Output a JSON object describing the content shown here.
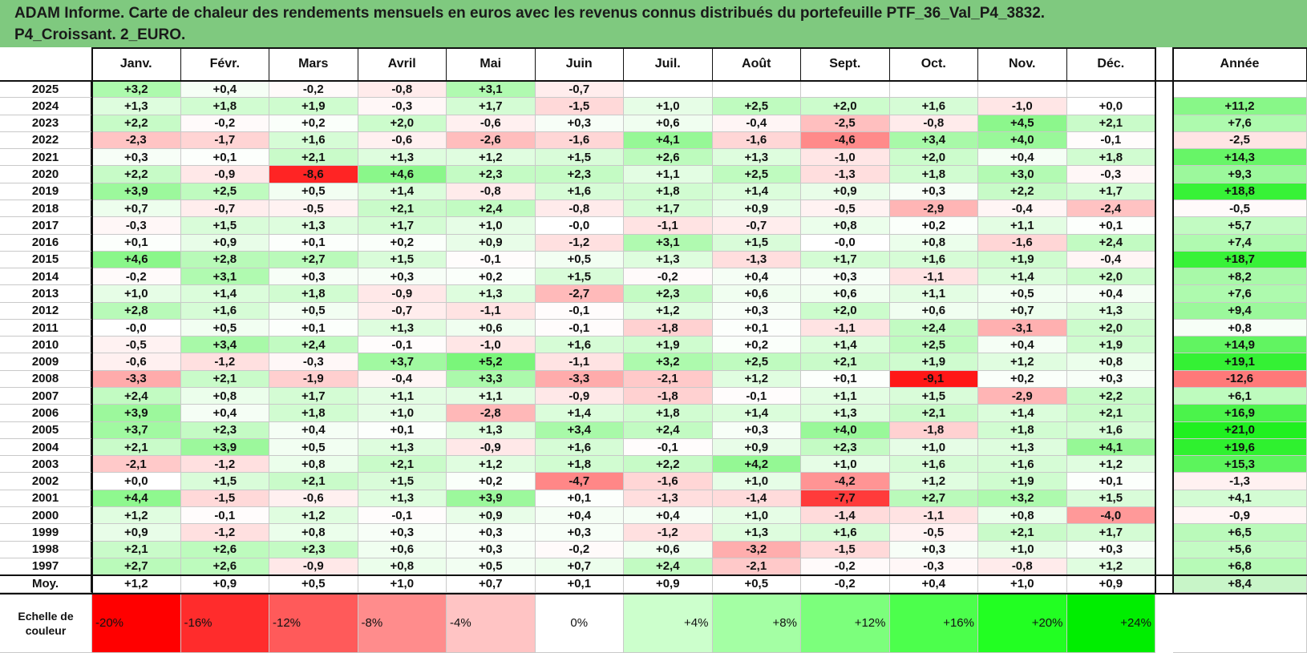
{
  "title": {
    "line1": "ADAM Informe. Carte de chaleur des rendements mensuels en euros avec les revenus connus distribués du portefeuille PTF_36_Val_P4_3832.",
    "line2": "P4_Croissant. 2_EURO."
  },
  "chart_data": {
    "type": "heatmap",
    "columns": [
      "Janv.",
      "Févr.",
      "Mars",
      "Avril",
      "Mai",
      "Juin",
      "Juil.",
      "Août",
      "Sept.",
      "Oct.",
      "Nov.",
      "Déc."
    ],
    "year_column_label": "Année",
    "rows": [
      {
        "year": "2025",
        "months": [
          "+3,2",
          "+0,4",
          "-0,2",
          "-0,8",
          "+3,1",
          "-0,7",
          "",
          "",
          "",
          "",
          "",
          ""
        ],
        "annual": ""
      },
      {
        "year": "2024",
        "months": [
          "+1,3",
          "+1,8",
          "+1,9",
          "-0,3",
          "+1,7",
          "-1,5",
          "+1,0",
          "+2,5",
          "+2,0",
          "+1,6",
          "-1,0",
          "+0,0"
        ],
        "annual": "+11,2"
      },
      {
        "year": "2023",
        "months": [
          "+2,2",
          "-0,2",
          "+0,2",
          "+2,0",
          "-0,6",
          "+0,3",
          "+0,6",
          "-0,4",
          "-2,5",
          "-0,8",
          "+4,5",
          "+2,1"
        ],
        "annual": "+7,6"
      },
      {
        "year": "2022",
        "months": [
          "-2,3",
          "-1,7",
          "+1,6",
          "-0,6",
          "-2,6",
          "-1,6",
          "+4,1",
          "-1,6",
          "-4,6",
          "+3,4",
          "+4,0",
          "-0,1"
        ],
        "annual": "-2,5"
      },
      {
        "year": "2021",
        "months": [
          "+0,3",
          "+0,1",
          "+2,1",
          "+1,3",
          "+1,2",
          "+1,5",
          "+2,6",
          "+1,3",
          "-1,0",
          "+2,0",
          "+0,4",
          "+1,8"
        ],
        "annual": "+14,3"
      },
      {
        "year": "2020",
        "months": [
          "+2,2",
          "-0,9",
          "-8,6",
          "+4,6",
          "+2,3",
          "+2,3",
          "+1,1",
          "+2,5",
          "-1,3",
          "+1,8",
          "+3,0",
          "-0,3"
        ],
        "annual": "+9,3"
      },
      {
        "year": "2019",
        "months": [
          "+3,9",
          "+2,5",
          "+0,5",
          "+1,4",
          "-0,8",
          "+1,6",
          "+1,8",
          "+1,4",
          "+0,9",
          "+0,3",
          "+2,2",
          "+1,7"
        ],
        "annual": "+18,8"
      },
      {
        "year": "2018",
        "months": [
          "+0,7",
          "-0,7",
          "-0,5",
          "+2,1",
          "+2,4",
          "-0,8",
          "+1,7",
          "+0,9",
          "-0,5",
          "-2,9",
          "-0,4",
          "-2,4"
        ],
        "annual": "-0,5"
      },
      {
        "year": "2017",
        "months": [
          "-0,3",
          "+1,5",
          "+1,3",
          "+1,7",
          "+1,0",
          "-0,0",
          "-1,1",
          "-0,7",
          "+0,8",
          "+0,2",
          "+1,1",
          "+0,1"
        ],
        "annual": "+5,7"
      },
      {
        "year": "2016",
        "months": [
          "+0,1",
          "+0,9",
          "+0,1",
          "+0,2",
          "+0,9",
          "-1,2",
          "+3,1",
          "+1,5",
          "-0,0",
          "+0,8",
          "-1,6",
          "+2,4"
        ],
        "annual": "+7,4"
      },
      {
        "year": "2015",
        "months": [
          "+4,6",
          "+2,8",
          "+2,7",
          "+1,5",
          "-0,1",
          "+0,5",
          "+1,3",
          "-1,3",
          "+1,7",
          "+1,6",
          "+1,9",
          "-0,4"
        ],
        "annual": "+18,7"
      },
      {
        "year": "2014",
        "months": [
          "-0,2",
          "+3,1",
          "+0,3",
          "+0,3",
          "+0,2",
          "+1,5",
          "-0,2",
          "+0,4",
          "+0,3",
          "-1,1",
          "+1,4",
          "+2,0"
        ],
        "annual": "+8,2"
      },
      {
        "year": "2013",
        "months": [
          "+1,0",
          "+1,4",
          "+1,8",
          "-0,9",
          "+1,3",
          "-2,7",
          "+2,3",
          "+0,6",
          "+0,6",
          "+1,1",
          "+0,5",
          "+0,4"
        ],
        "annual": "+7,6"
      },
      {
        "year": "2012",
        "months": [
          "+2,8",
          "+1,6",
          "+0,5",
          "-0,7",
          "-1,1",
          "-0,1",
          "+1,2",
          "+0,3",
          "+2,0",
          "+0,6",
          "+0,7",
          "+1,3"
        ],
        "annual": "+9,4"
      },
      {
        "year": "2011",
        "months": [
          "-0,0",
          "+0,5",
          "+0,1",
          "+1,3",
          "+0,6",
          "-0,1",
          "-1,8",
          "+0,1",
          "-1,1",
          "+2,4",
          "-3,1",
          "+2,0"
        ],
        "annual": "+0,8"
      },
      {
        "year": "2010",
        "months": [
          "-0,5",
          "+3,4",
          "+2,4",
          "-0,1",
          "-1,0",
          "+1,6",
          "+1,9",
          "+0,2",
          "+1,4",
          "+2,5",
          "+0,4",
          "+1,9"
        ],
        "annual": "+14,9"
      },
      {
        "year": "2009",
        "months": [
          "-0,6",
          "-1,2",
          "-0,3",
          "+3,7",
          "+5,2",
          "-1,1",
          "+3,2",
          "+2,5",
          "+2,1",
          "+1,9",
          "+1,2",
          "+0,8"
        ],
        "annual": "+19,1"
      },
      {
        "year": "2008",
        "months": [
          "-3,3",
          "+2,1",
          "-1,9",
          "-0,4",
          "+3,3",
          "-3,3",
          "-2,1",
          "+1,2",
          "+0,1",
          "-9,1",
          "+0,2",
          "+0,3"
        ],
        "annual": "-12,6"
      },
      {
        "year": "2007",
        "months": [
          "+2,4",
          "+0,8",
          "+1,7",
          "+1,1",
          "+1,1",
          "-0,9",
          "-1,8",
          "-0,1",
          "+1,1",
          "+1,5",
          "-2,9",
          "+2,2"
        ],
        "annual": "+6,1"
      },
      {
        "year": "2006",
        "months": [
          "+3,9",
          "+0,4",
          "+1,8",
          "+1,0",
          "-2,8",
          "+1,4",
          "+1,8",
          "+1,4",
          "+1,3",
          "+2,1",
          "+1,4",
          "+2,1"
        ],
        "annual": "+16,9"
      },
      {
        "year": "2005",
        "months": [
          "+3,7",
          "+2,3",
          "+0,4",
          "+0,1",
          "+1,3",
          "+3,4",
          "+2,4",
          "+0,3",
          "+4,0",
          "-1,8",
          "+1,8",
          "+1,6"
        ],
        "annual": "+21,0"
      },
      {
        "year": "2004",
        "months": [
          "+2,1",
          "+3,9",
          "+0,5",
          "+1,3",
          "-0,9",
          "+1,6",
          "-0,1",
          "+0,9",
          "+2,3",
          "+1,0",
          "+1,3",
          "+4,1"
        ],
        "annual": "+19,6"
      },
      {
        "year": "2003",
        "months": [
          "-2,1",
          "-1,2",
          "+0,8",
          "+2,1",
          "+1,2",
          "+1,8",
          "+2,2",
          "+4,2",
          "+1,0",
          "+1,6",
          "+1,6",
          "+1,2"
        ],
        "annual": "+15,3"
      },
      {
        "year": "2002",
        "months": [
          "+0,0",
          "+1,5",
          "+2,1",
          "+1,5",
          "+0,2",
          "-4,7",
          "-1,6",
          "+1,0",
          "-4,2",
          "+1,2",
          "+1,9",
          "+0,1"
        ],
        "annual": "-1,3"
      },
      {
        "year": "2001",
        "months": [
          "+4,4",
          "-1,5",
          "-0,6",
          "+1,3",
          "+3,9",
          "+0,1",
          "-1,3",
          "-1,4",
          "-7,7",
          "+2,7",
          "+3,2",
          "+1,5"
        ],
        "annual": "+4,1"
      },
      {
        "year": "2000",
        "months": [
          "+1,2",
          "-0,1",
          "+1,2",
          "-0,1",
          "+0,9",
          "+0,4",
          "+0,4",
          "+1,0",
          "-1,4",
          "-1,1",
          "+0,8",
          "-4,0"
        ],
        "annual": "-0,9"
      },
      {
        "year": "1999",
        "months": [
          "+0,9",
          "-1,2",
          "+0,8",
          "+0,3",
          "+0,3",
          "+0,3",
          "-1,2",
          "+1,3",
          "+1,6",
          "-0,5",
          "+2,1",
          "+1,7"
        ],
        "annual": "+6,5"
      },
      {
        "year": "1998",
        "months": [
          "+2,1",
          "+2,6",
          "+2,3",
          "+0,6",
          "+0,3",
          "-0,2",
          "+0,6",
          "-3,2",
          "-1,5",
          "+0,3",
          "+1,0",
          "+0,3"
        ],
        "annual": "+5,6"
      },
      {
        "year": "1997",
        "months": [
          "+2,7",
          "+2,6",
          "-0,9",
          "+0,8",
          "+0,5",
          "+0,7",
          "+2,4",
          "-2,1",
          "-0,2",
          "-0,3",
          "-0,8",
          "+1,2"
        ],
        "annual": "+6,8"
      }
    ],
    "average": {
      "label": "Moy.",
      "months": [
        "+1,2",
        "+0,9",
        "+0,5",
        "+1,0",
        "+0,7",
        "+0,1",
        "+0,9",
        "+0,5",
        "-0,2",
        "+0,4",
        "+1,0",
        "+0,9"
      ],
      "annual": "+8,4"
    },
    "legend": {
      "label_line1": "Echelle de",
      "label_line2": "couleur",
      "steps": [
        {
          "text": "-20%",
          "value": -20,
          "color": "#ff0000",
          "align": "left"
        },
        {
          "text": "-16%",
          "value": -16,
          "color": "#ff2c2c",
          "align": "left"
        },
        {
          "text": "-12%",
          "value": -12,
          "color": "#ff5a5a",
          "align": "left"
        },
        {
          "text": "-8%",
          "value": -8,
          "color": "#ff8c8c",
          "align": "left"
        },
        {
          "text": "-4%",
          "value": -4,
          "color": "#ffc4c4",
          "align": "left"
        },
        {
          "text": "0%",
          "value": 0,
          "color": "#ffffff",
          "align": "center"
        },
        {
          "text": "+4%",
          "value": 4,
          "color": "#ccffcc",
          "align": "right"
        },
        {
          "text": "+8%",
          "value": 8,
          "color": "#a4ffa4",
          "align": "right"
        },
        {
          "text": "+12%",
          "value": 12,
          "color": "#7cff7c",
          "align": "right"
        },
        {
          "text": "+16%",
          "value": 16,
          "color": "#4cff4c",
          "align": "right"
        },
        {
          "text": "+20%",
          "value": 20,
          "color": "#22ff22",
          "align": "right"
        },
        {
          "text": "+24%",
          "value": 24,
          "color": "#00ee00",
          "align": "right"
        }
      ]
    }
  }
}
